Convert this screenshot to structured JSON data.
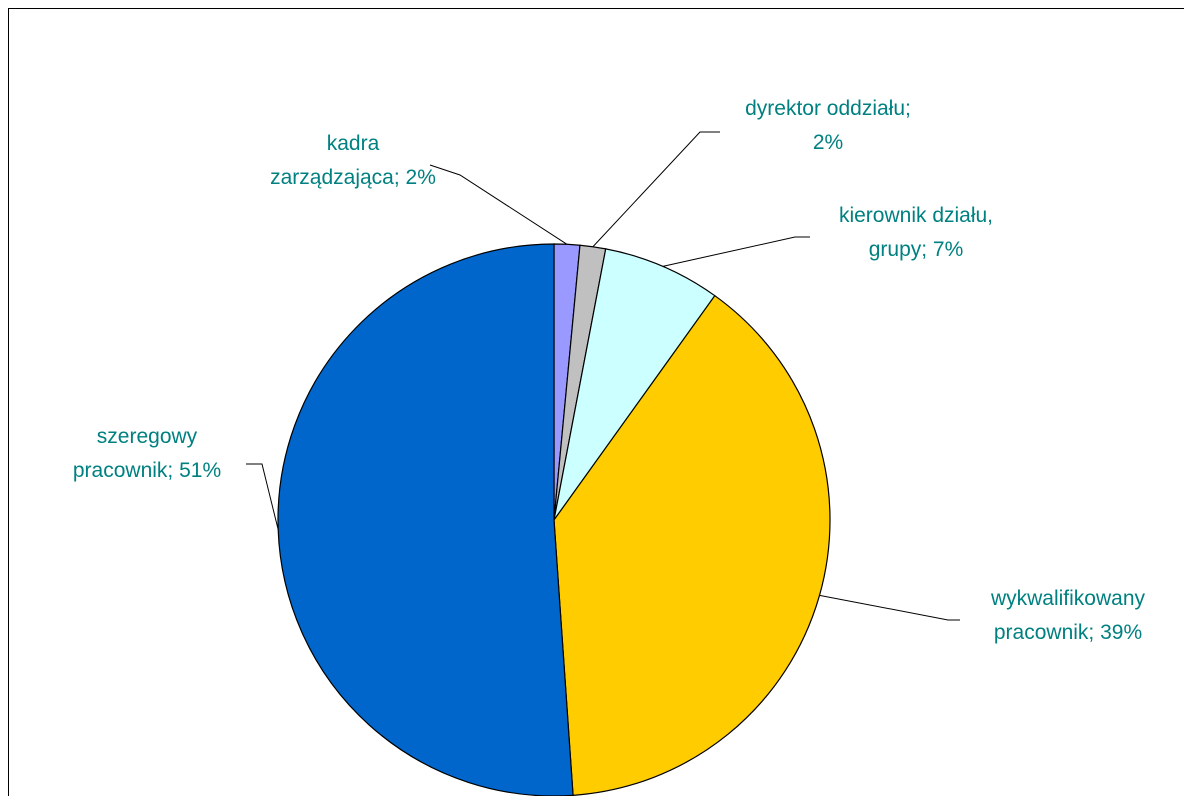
{
  "chart_data": {
    "type": "pie",
    "slices": [
      {
        "label_lines": [
          "kadra",
          "zarządzająca; 2%"
        ],
        "value": 1.5,
        "color": "#9999ff"
      },
      {
        "label_lines": [
          "dyrektor oddziału;",
          "2%"
        ],
        "value": 1.5,
        "color": "#c0c0c0"
      },
      {
        "label_lines": [
          "kierownik działu,",
          "grupy; 7%"
        ],
        "value": 6.9,
        "color": "#ccffff"
      },
      {
        "label_lines": [
          "wykwalifikowany",
          "pracownik; 39%"
        ],
        "value": 39.0,
        "color": "#ffcc00"
      },
      {
        "label_lines": [
          "szeregowy",
          "pracownik; 51%"
        ],
        "value": 51.1,
        "color": "#0066cc"
      }
    ],
    "label_color": "#008080",
    "leader_line_color": "#000000"
  }
}
